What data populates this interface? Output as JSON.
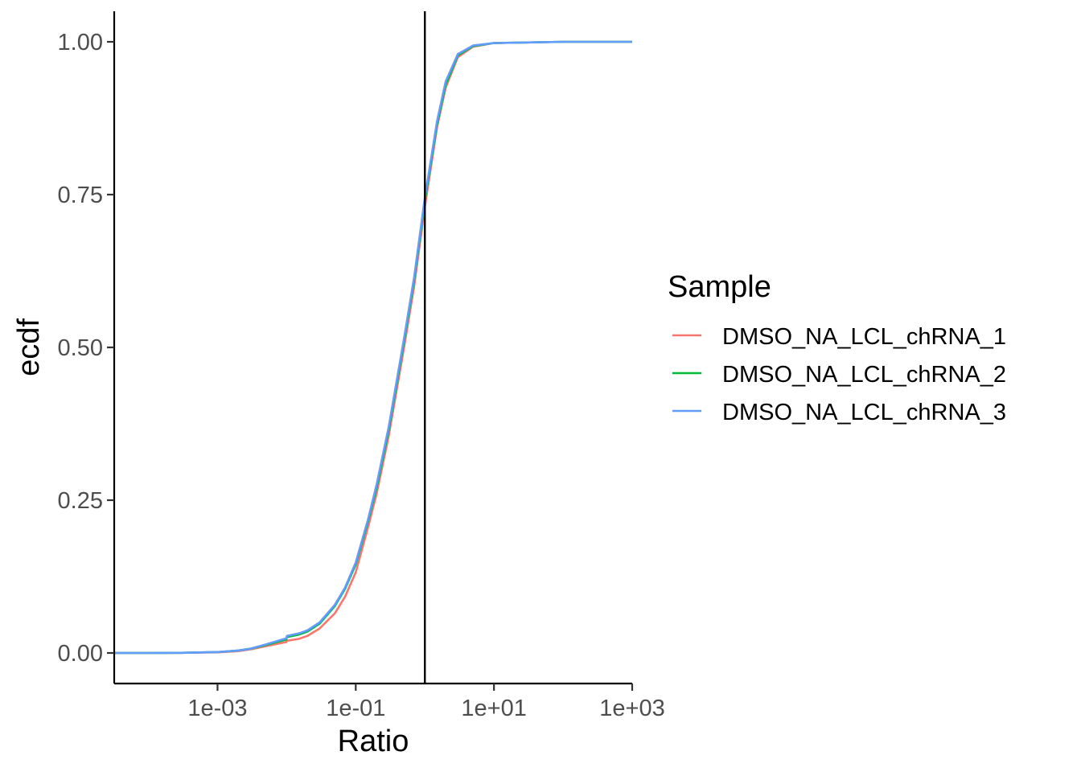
{
  "chart_data": {
    "type": "line",
    "title": "",
    "xlabel": "Ratio",
    "ylabel": "ecdf",
    "x_scale": "log10",
    "xlim": [
      3.2e-05,
      1000
    ],
    "ylim": [
      -0.05,
      1.05
    ],
    "x_ticks": [
      0.001,
      0.1,
      10,
      1000
    ],
    "x_tick_labels": [
      "1e-03",
      "1e-01",
      "1e+01",
      "1e+03"
    ],
    "y_ticks": [
      0,
      0.25,
      0.5,
      0.75,
      1
    ],
    "y_tick_labels": [
      "0.00",
      "0.25",
      "0.50",
      "0.75",
      "1.00"
    ],
    "vline": 1,
    "grid": false,
    "legend": {
      "title": "Sample",
      "position": "right"
    },
    "series": [
      {
        "name": "DMSO_NA_LCL_chRNA_1",
        "color": "#F8766D",
        "x": [
          3.16e-05,
          0.0001,
          0.0003,
          0.001,
          0.002,
          0.003,
          0.005,
          0.0099,
          0.0101,
          0.015,
          0.02,
          0.03,
          0.05,
          0.07,
          0.1,
          0.15,
          0.2,
          0.3,
          0.5,
          0.7,
          1,
          1.5,
          2,
          3,
          5,
          10,
          100,
          1000
        ],
        "y": [
          0,
          0,
          0.0003,
          0.001,
          0.003,
          0.006,
          0.011,
          0.018,
          0.02,
          0.023,
          0.028,
          0.04,
          0.065,
          0.092,
          0.132,
          0.205,
          0.26,
          0.355,
          0.5,
          0.6,
          0.73,
          0.86,
          0.925,
          0.975,
          0.992,
          0.998,
          1,
          1
        ]
      },
      {
        "name": "DMSO_NA_LCL_chRNA_2",
        "color": "#00BA38",
        "x": [
          3.16e-05,
          0.0001,
          0.0003,
          0.001,
          0.002,
          0.003,
          0.005,
          0.0099,
          0.0101,
          0.015,
          0.02,
          0.03,
          0.05,
          0.07,
          0.1,
          0.15,
          0.2,
          0.3,
          0.5,
          0.7,
          1,
          1.5,
          2,
          3,
          5,
          10,
          100,
          1000
        ],
        "y": [
          0,
          0,
          0.0003,
          0.0015,
          0.004,
          0.007,
          0.013,
          0.022,
          0.026,
          0.03,
          0.035,
          0.048,
          0.077,
          0.105,
          0.145,
          0.215,
          0.27,
          0.365,
          0.51,
          0.61,
          0.74,
          0.865,
          0.93,
          0.978,
          0.993,
          0.998,
          1,
          1
        ]
      },
      {
        "name": "DMSO_NA_LCL_chRNA_3",
        "color": "#619CFF",
        "x": [
          3.16e-05,
          0.0001,
          0.0003,
          0.001,
          0.002,
          0.003,
          0.005,
          0.0099,
          0.0101,
          0.015,
          0.02,
          0.03,
          0.05,
          0.07,
          0.1,
          0.15,
          0.2,
          0.3,
          0.5,
          0.7,
          1,
          1.5,
          2,
          3,
          5,
          10,
          100,
          1000
        ],
        "y": [
          0,
          0,
          0.0003,
          0.0015,
          0.004,
          0.007,
          0.014,
          0.024,
          0.028,
          0.032,
          0.037,
          0.05,
          0.079,
          0.107,
          0.148,
          0.218,
          0.275,
          0.37,
          0.515,
          0.615,
          0.745,
          0.87,
          0.935,
          0.98,
          0.994,
          0.998,
          1,
          1
        ]
      }
    ]
  }
}
